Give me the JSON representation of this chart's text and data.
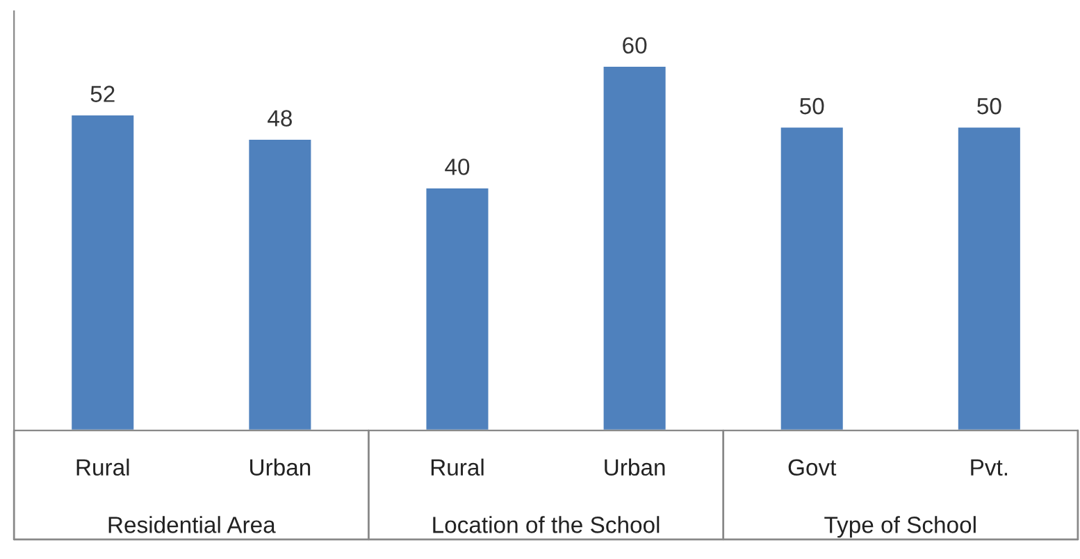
{
  "chart_data": {
    "type": "bar",
    "categories": [
      "Rural",
      "Urban",
      "Rural",
      "Urban",
      "Govt",
      "Pvt."
    ],
    "series": [
      {
        "color": "#4f81bd",
        "values": [
          52,
          48,
          40,
          60,
          50,
          50
        ]
      }
    ],
    "data_labels": true,
    "annotations": [
      "Residential Area",
      "Location of the School",
      "Type of School"
    ]
  }
}
